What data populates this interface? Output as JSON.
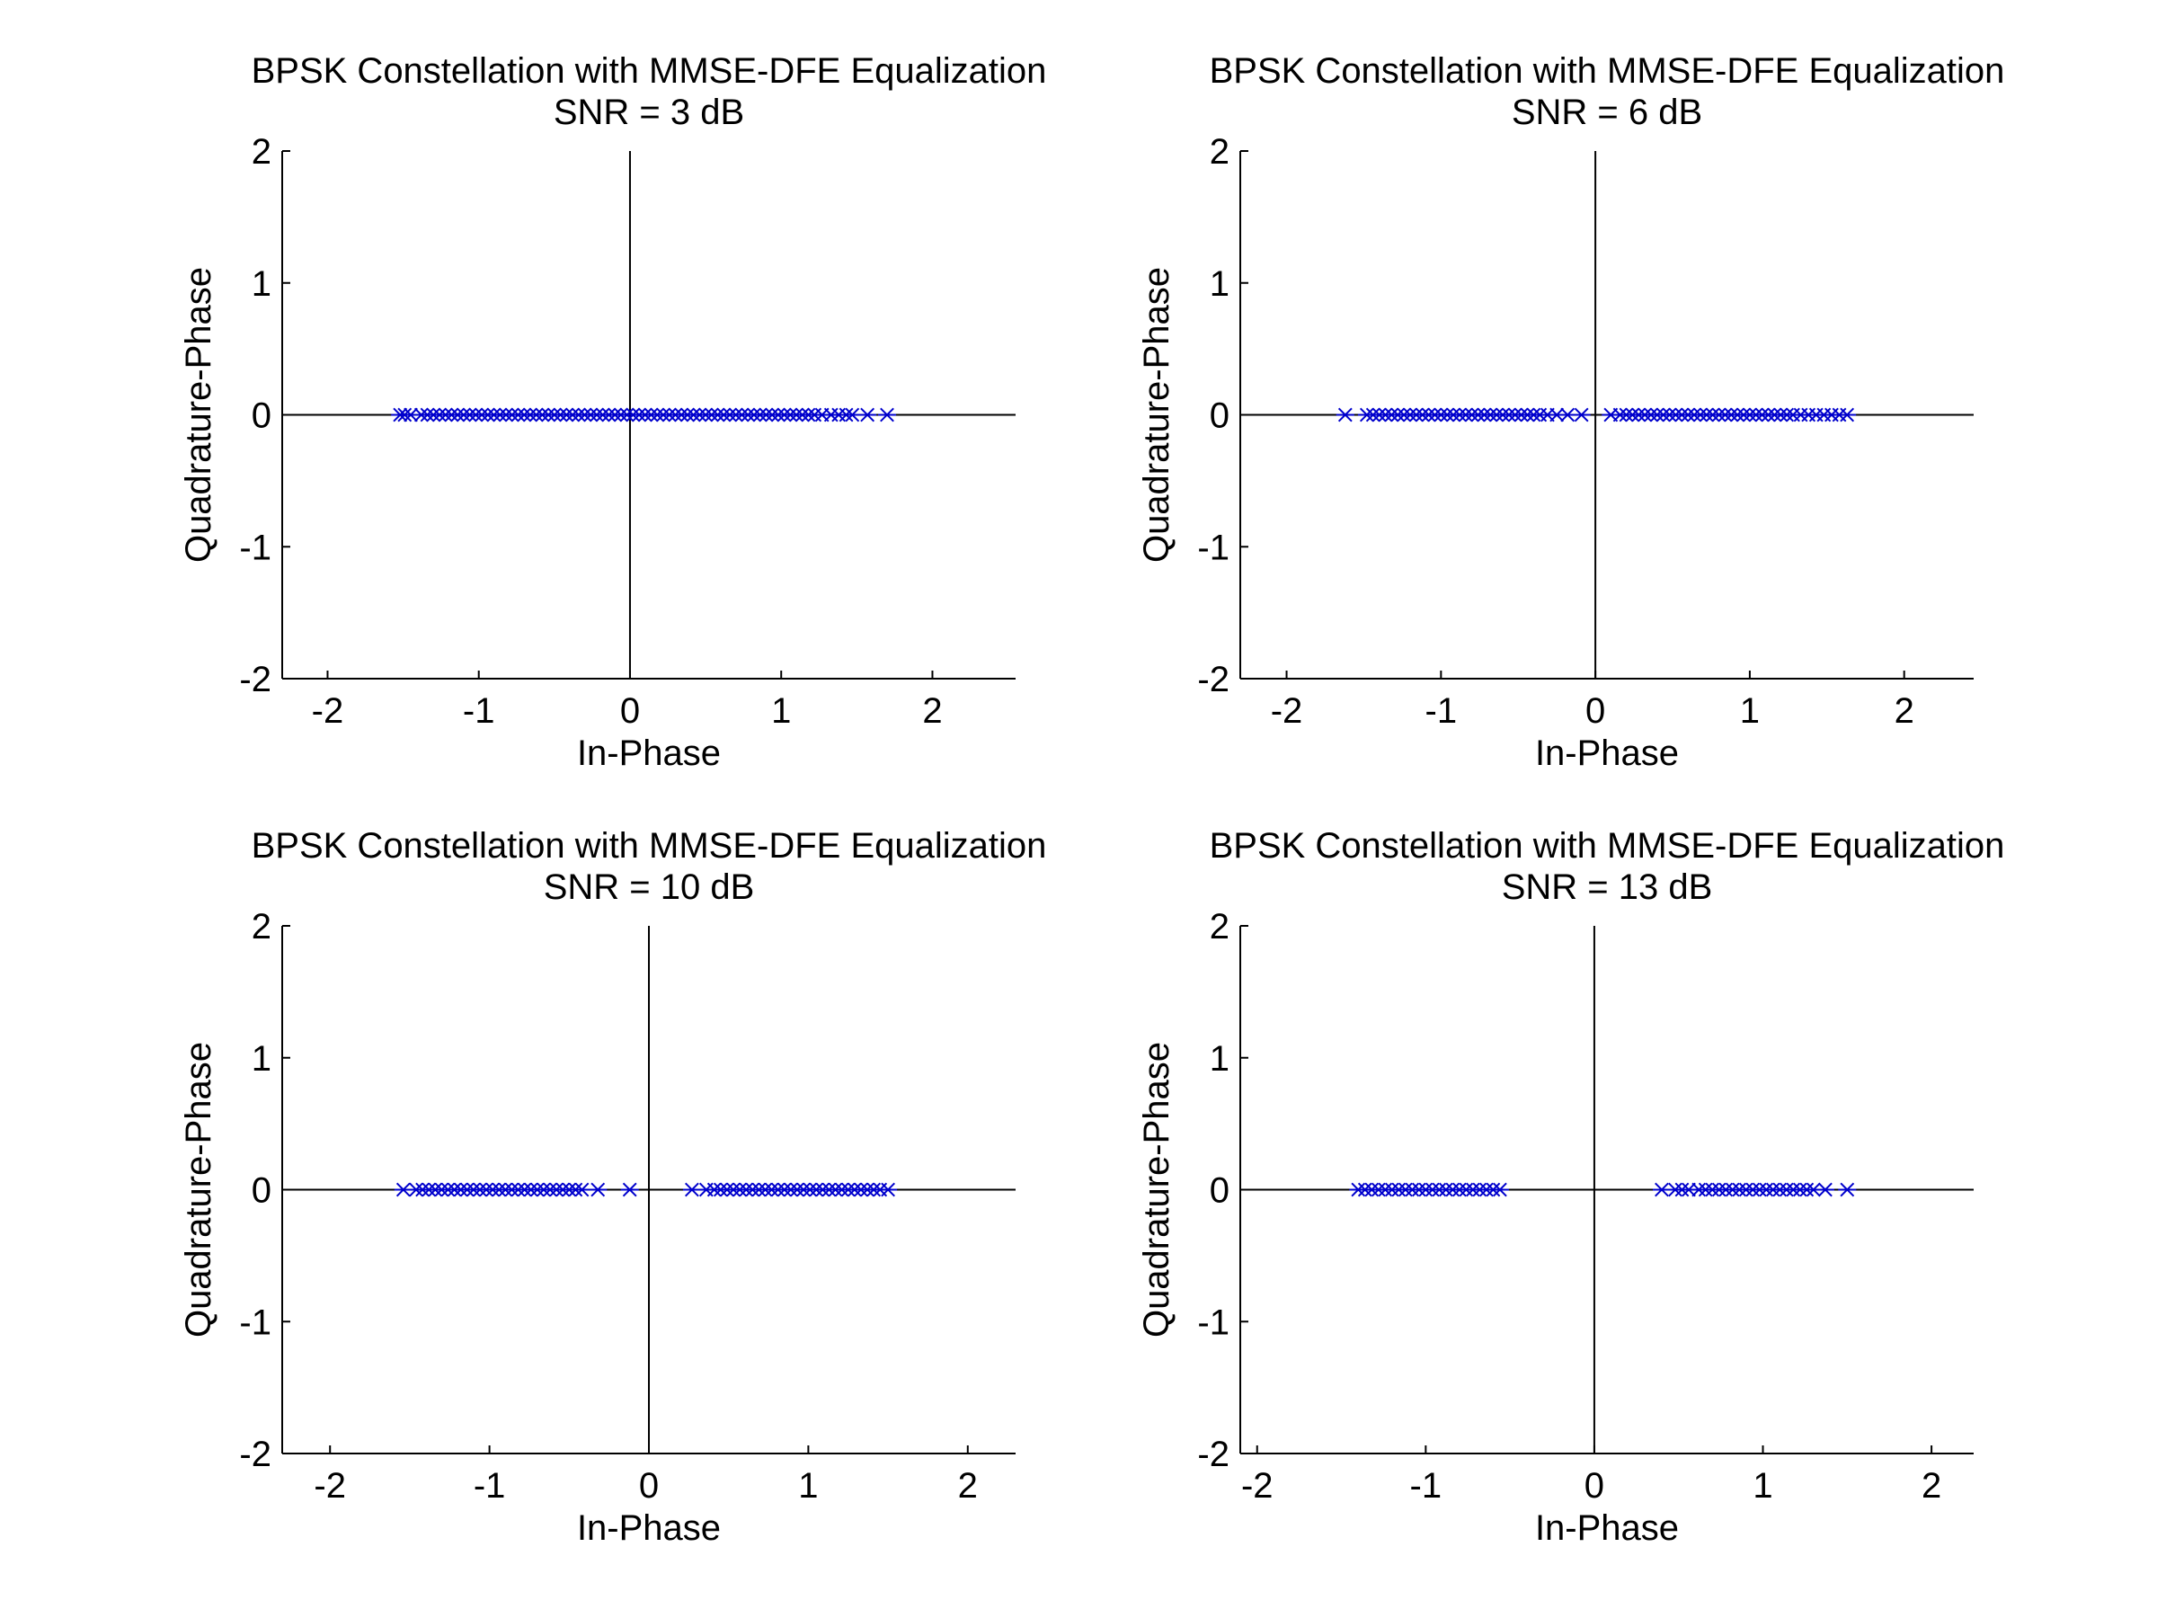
{
  "figure": {
    "background": "#ffffff",
    "marker_color": "#0000cc",
    "axis_color": "#000000"
  },
  "chart_data": [
    {
      "type": "scatter",
      "title": "BPSK Constellation with MMSE-DFE Equalization",
      "subtitle": "SNR = 3 dB",
      "xlabel": "In-Phase",
      "ylabel": "Quadrature-Phase",
      "xlim": [
        -2.3,
        2.55
      ],
      "ylim": [
        -2,
        2
      ],
      "xticks": [
        -2,
        -1,
        0,
        1,
        2
      ],
      "yticks": [
        -2,
        -1,
        0,
        1,
        2
      ],
      "marker": "asterisk",
      "grid": false,
      "points": [
        [
          -1.52,
          0
        ],
        [
          -1.49,
          0
        ],
        [
          -1.45,
          0
        ],
        [
          -1.38,
          0
        ],
        [
          -1.34,
          0
        ],
        [
          -1.3,
          0
        ],
        [
          -1.26,
          0
        ],
        [
          -1.22,
          0
        ],
        [
          -1.18,
          0
        ],
        [
          -1.14,
          0
        ],
        [
          -1.1,
          0
        ],
        [
          -1.06,
          0
        ],
        [
          -1.02,
          0
        ],
        [
          -0.98,
          0
        ],
        [
          -0.94,
          0
        ],
        [
          -0.9,
          0
        ],
        [
          -0.86,
          0
        ],
        [
          -0.82,
          0
        ],
        [
          -0.78,
          0
        ],
        [
          -0.74,
          0
        ],
        [
          -0.7,
          0
        ],
        [
          -0.66,
          0
        ],
        [
          -0.62,
          0
        ],
        [
          -0.58,
          0
        ],
        [
          -0.54,
          0
        ],
        [
          -0.5,
          0
        ],
        [
          -0.46,
          0
        ],
        [
          -0.42,
          0
        ],
        [
          -0.38,
          0
        ],
        [
          -0.34,
          0
        ],
        [
          -0.3,
          0
        ],
        [
          -0.26,
          0
        ],
        [
          -0.22,
          0
        ],
        [
          -0.18,
          0
        ],
        [
          -0.14,
          0
        ],
        [
          -0.1,
          0
        ],
        [
          -0.06,
          0
        ],
        [
          -0.02,
          0
        ],
        [
          0.02,
          0
        ],
        [
          0.06,
          0
        ],
        [
          0.1,
          0
        ],
        [
          0.14,
          0
        ],
        [
          0.18,
          0
        ],
        [
          0.22,
          0
        ],
        [
          0.26,
          0
        ],
        [
          0.3,
          0
        ],
        [
          0.34,
          0
        ],
        [
          0.38,
          0
        ],
        [
          0.42,
          0
        ],
        [
          0.46,
          0
        ],
        [
          0.5,
          0
        ],
        [
          0.54,
          0
        ],
        [
          0.58,
          0
        ],
        [
          0.62,
          0
        ],
        [
          0.66,
          0
        ],
        [
          0.7,
          0
        ],
        [
          0.74,
          0
        ],
        [
          0.78,
          0
        ],
        [
          0.82,
          0
        ],
        [
          0.86,
          0
        ],
        [
          0.9,
          0
        ],
        [
          0.94,
          0
        ],
        [
          0.98,
          0
        ],
        [
          1.02,
          0
        ],
        [
          1.06,
          0
        ],
        [
          1.1,
          0
        ],
        [
          1.14,
          0
        ],
        [
          1.18,
          0
        ],
        [
          1.22,
          0
        ],
        [
          1.27,
          0
        ],
        [
          1.33,
          0
        ],
        [
          1.38,
          0
        ],
        [
          1.43,
          0
        ],
        [
          1.47,
          0
        ],
        [
          1.57,
          0
        ],
        [
          1.7,
          0
        ]
      ]
    },
    {
      "type": "scatter",
      "title": "BPSK Constellation with MMSE-DFE Equalization",
      "subtitle": "SNR = 6 dB",
      "xlabel": "In-Phase",
      "ylabel": "Quadrature-Phase",
      "xlim": [
        -2.3,
        2.45
      ],
      "ylim": [
        -2,
        2
      ],
      "xticks": [
        -2,
        -1,
        0,
        1,
        2
      ],
      "yticks": [
        -2,
        -1,
        0,
        1,
        2
      ],
      "marker": "asterisk",
      "grid": false,
      "points": [
        [
          -1.62,
          0
        ],
        [
          -1.48,
          0
        ],
        [
          -1.44,
          0
        ],
        [
          -1.4,
          0
        ],
        [
          -1.36,
          0
        ],
        [
          -1.32,
          0
        ],
        [
          -1.28,
          0
        ],
        [
          -1.24,
          0
        ],
        [
          -1.2,
          0
        ],
        [
          -1.16,
          0
        ],
        [
          -1.12,
          0
        ],
        [
          -1.08,
          0
        ],
        [
          -1.04,
          0
        ],
        [
          -1.0,
          0
        ],
        [
          -0.96,
          0
        ],
        [
          -0.92,
          0
        ],
        [
          -0.88,
          0
        ],
        [
          -0.84,
          0
        ],
        [
          -0.8,
          0
        ],
        [
          -0.76,
          0
        ],
        [
          -0.72,
          0
        ],
        [
          -0.68,
          0
        ],
        [
          -0.64,
          0
        ],
        [
          -0.6,
          0
        ],
        [
          -0.56,
          0
        ],
        [
          -0.52,
          0
        ],
        [
          -0.48,
          0
        ],
        [
          -0.44,
          0
        ],
        [
          -0.4,
          0
        ],
        [
          -0.36,
          0
        ],
        [
          -0.31,
          0
        ],
        [
          -0.25,
          0
        ],
        [
          -0.18,
          0
        ],
        [
          -0.09,
          0
        ],
        [
          0.1,
          0
        ],
        [
          0.16,
          0
        ],
        [
          0.2,
          0
        ],
        [
          0.24,
          0
        ],
        [
          0.28,
          0
        ],
        [
          0.32,
          0
        ],
        [
          0.36,
          0
        ],
        [
          0.4,
          0
        ],
        [
          0.44,
          0
        ],
        [
          0.48,
          0
        ],
        [
          0.52,
          0
        ],
        [
          0.56,
          0
        ],
        [
          0.6,
          0
        ],
        [
          0.64,
          0
        ],
        [
          0.68,
          0
        ],
        [
          0.72,
          0
        ],
        [
          0.76,
          0
        ],
        [
          0.8,
          0
        ],
        [
          0.84,
          0
        ],
        [
          0.88,
          0
        ],
        [
          0.92,
          0
        ],
        [
          0.96,
          0
        ],
        [
          1.0,
          0
        ],
        [
          1.04,
          0
        ],
        [
          1.08,
          0
        ],
        [
          1.12,
          0
        ],
        [
          1.16,
          0
        ],
        [
          1.2,
          0
        ],
        [
          1.24,
          0
        ],
        [
          1.28,
          0
        ],
        [
          1.33,
          0
        ],
        [
          1.38,
          0
        ],
        [
          1.43,
          0
        ],
        [
          1.48,
          0
        ],
        [
          1.53,
          0
        ],
        [
          1.58,
          0
        ],
        [
          1.63,
          0
        ]
      ]
    },
    {
      "type": "scatter",
      "title": "BPSK Constellation with MMSE-DFE Equalization",
      "subtitle": "SNR = 10 dB",
      "xlabel": "In-Phase",
      "ylabel": "Quadrature-Phase",
      "xlim": [
        -2.3,
        2.3
      ],
      "ylim": [
        -2,
        2
      ],
      "xticks": [
        -2,
        -1,
        0,
        1,
        2
      ],
      "yticks": [
        -2,
        -1,
        0,
        1,
        2
      ],
      "marker": "asterisk",
      "grid": false,
      "points": [
        [
          -1.54,
          0
        ],
        [
          -1.46,
          0
        ],
        [
          -1.42,
          0
        ],
        [
          -1.38,
          0
        ],
        [
          -1.34,
          0
        ],
        [
          -1.3,
          0
        ],
        [
          -1.26,
          0
        ],
        [
          -1.22,
          0
        ],
        [
          -1.18,
          0
        ],
        [
          -1.14,
          0
        ],
        [
          -1.1,
          0
        ],
        [
          -1.06,
          0
        ],
        [
          -1.02,
          0
        ],
        [
          -0.98,
          0
        ],
        [
          -0.94,
          0
        ],
        [
          -0.9,
          0
        ],
        [
          -0.86,
          0
        ],
        [
          -0.82,
          0
        ],
        [
          -0.78,
          0
        ],
        [
          -0.74,
          0
        ],
        [
          -0.7,
          0
        ],
        [
          -0.66,
          0
        ],
        [
          -0.62,
          0
        ],
        [
          -0.58,
          0
        ],
        [
          -0.54,
          0
        ],
        [
          -0.5,
          0
        ],
        [
          -0.46,
          0
        ],
        [
          -0.42,
          0
        ],
        [
          -0.32,
          0
        ],
        [
          -0.12,
          0
        ],
        [
          0.27,
          0
        ],
        [
          0.36,
          0
        ],
        [
          0.41,
          0
        ],
        [
          0.45,
          0
        ],
        [
          0.49,
          0
        ],
        [
          0.53,
          0
        ],
        [
          0.57,
          0
        ],
        [
          0.61,
          0
        ],
        [
          0.65,
          0
        ],
        [
          0.69,
          0
        ],
        [
          0.73,
          0
        ],
        [
          0.77,
          0
        ],
        [
          0.81,
          0
        ],
        [
          0.85,
          0
        ],
        [
          0.89,
          0
        ],
        [
          0.93,
          0
        ],
        [
          0.97,
          0
        ],
        [
          1.01,
          0
        ],
        [
          1.05,
          0
        ],
        [
          1.09,
          0
        ],
        [
          1.13,
          0
        ],
        [
          1.17,
          0
        ],
        [
          1.21,
          0
        ],
        [
          1.25,
          0
        ],
        [
          1.29,
          0
        ],
        [
          1.33,
          0
        ],
        [
          1.37,
          0
        ],
        [
          1.41,
          0
        ],
        [
          1.45,
          0
        ],
        [
          1.5,
          0
        ]
      ]
    },
    {
      "type": "scatter",
      "title": "BPSK Constellation with MMSE-DFE Equalization",
      "subtitle": "SNR = 13 dB",
      "xlabel": "In-Phase",
      "ylabel": "Quadrature-Phase",
      "xlim": [
        -2.1,
        2.25
      ],
      "ylim": [
        -2,
        2
      ],
      "xticks": [
        -2,
        -1,
        0,
        1,
        2
      ],
      "yticks": [
        -2,
        -1,
        0,
        1,
        2
      ],
      "marker": "asterisk",
      "grid": false,
      "points": [
        [
          -1.4,
          0
        ],
        [
          -1.36,
          0
        ],
        [
          -1.32,
          0
        ],
        [
          -1.28,
          0
        ],
        [
          -1.24,
          0
        ],
        [
          -1.2,
          0
        ],
        [
          -1.16,
          0
        ],
        [
          -1.12,
          0
        ],
        [
          -1.08,
          0
        ],
        [
          -1.04,
          0
        ],
        [
          -1.0,
          0
        ],
        [
          -0.96,
          0
        ],
        [
          -0.92,
          0
        ],
        [
          -0.88,
          0
        ],
        [
          -0.84,
          0
        ],
        [
          -0.8,
          0
        ],
        [
          -0.76,
          0
        ],
        [
          -0.72,
          0
        ],
        [
          -0.68,
          0
        ],
        [
          -0.64,
          0
        ],
        [
          -0.6,
          0
        ],
        [
          -0.56,
          0
        ],
        [
          0.4,
          0
        ],
        [
          0.48,
          0
        ],
        [
          0.52,
          0
        ],
        [
          0.56,
          0
        ],
        [
          0.62,
          0
        ],
        [
          0.66,
          0
        ],
        [
          0.7,
          0
        ],
        [
          0.74,
          0
        ],
        [
          0.78,
          0
        ],
        [
          0.82,
          0
        ],
        [
          0.86,
          0
        ],
        [
          0.9,
          0
        ],
        [
          0.94,
          0
        ],
        [
          0.98,
          0
        ],
        [
          1.02,
          0
        ],
        [
          1.06,
          0
        ],
        [
          1.1,
          0
        ],
        [
          1.14,
          0
        ],
        [
          1.18,
          0
        ],
        [
          1.22,
          0
        ],
        [
          1.26,
          0
        ],
        [
          1.3,
          0
        ],
        [
          1.37,
          0
        ],
        [
          1.5,
          0
        ]
      ]
    }
  ]
}
